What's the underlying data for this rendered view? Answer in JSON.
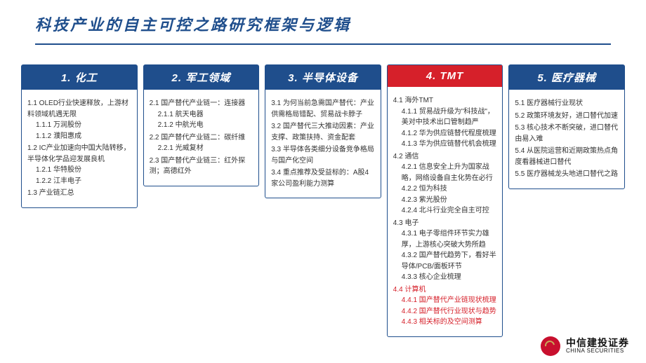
{
  "title": "科技产业的自主可控之路研究框架与逻辑",
  "header_bg_default": "#1f4e8c",
  "header_bg_highlight": "#d6202a",
  "columns": [
    {
      "header": "1. 化工",
      "highlight": false,
      "items": [
        {
          "text": "1.1 OLED行业快速释放，上游材料领域机遇无限",
          "lvl": 1,
          "red": false
        },
        {
          "text": "1.1.1 万润股份",
          "lvl": 2,
          "red": false
        },
        {
          "text": "1.1.2 濮阳惠成",
          "lvl": 2,
          "red": false
        },
        {
          "text": "1.2 IC产业加速向中国大陆转移，半导体化学品迎发展良机",
          "lvl": 1,
          "red": false
        },
        {
          "text": "1.2.1 华特股份",
          "lvl": 2,
          "red": false
        },
        {
          "text": "1.2.2 江丰电子",
          "lvl": 2,
          "red": false
        },
        {
          "text": "1.3 产业链汇总",
          "lvl": 1,
          "red": false
        }
      ]
    },
    {
      "header": "2. 军工领域",
      "highlight": false,
      "items": [
        {
          "text": "2.1 国产替代产业链一：连接器",
          "lvl": 1,
          "red": false
        },
        {
          "text": "2.1.1 航天电器",
          "lvl": 2,
          "red": false
        },
        {
          "text": "2.1.2 中航光电",
          "lvl": 2,
          "red": false
        },
        {
          "text": "2.2 国产替代产业链二：碳纤维",
          "lvl": 1,
          "red": false
        },
        {
          "text": "2.2.1 光威复材",
          "lvl": 2,
          "red": false
        },
        {
          "text": "2.3 国产替代产业链三：红外探测；高德红外",
          "lvl": 1,
          "red": false
        }
      ]
    },
    {
      "header": "3. 半导体设备",
      "highlight": false,
      "items": [
        {
          "text": "3.1 为何当前急需国产替代：产业供需格局错配、贸易战卡脖子",
          "lvl": 1,
          "red": false
        },
        {
          "text": "3.2 国产替代三大推动因素：产业支撑、政策扶持、资金配套",
          "lvl": 1,
          "red": false
        },
        {
          "text": "3.3 半导体各类细分设备竞争格局与国产化空间",
          "lvl": 1,
          "red": false
        },
        {
          "text": "3.4 重点推荐及受益标的：A股4家公司盈利能力测算",
          "lvl": 1,
          "red": false
        }
      ]
    },
    {
      "header": "4. TMT",
      "highlight": true,
      "items": [
        {
          "text": "4.1 海外TMT",
          "lvl": 1,
          "red": false
        },
        {
          "text": "4.1.1 贸易战升级为\"科技战\"，美对中技术出口管制趋严",
          "lvl": 2,
          "red": false
        },
        {
          "text": "4.1.2 华为供应链替代程度梳理",
          "lvl": 2,
          "red": false
        },
        {
          "text": "4.1.3 华为供应链替代机会梳理",
          "lvl": 2,
          "red": false
        },
        {
          "text": "4.2 通信",
          "lvl": 1,
          "red": false
        },
        {
          "text": "4.2.1 信息安全上升为国家战略，网络设备自主化势在必行",
          "lvl": 2,
          "red": false
        },
        {
          "text": "4.2.2 恒为科技",
          "lvl": 2,
          "red": false
        },
        {
          "text": "4.2.3 紫光股份",
          "lvl": 2,
          "red": false
        },
        {
          "text": "4.2.4 北斗行业完全自主可控",
          "lvl": 2,
          "red": false
        },
        {
          "text": "4.3 电子",
          "lvl": 1,
          "red": false
        },
        {
          "text": "4.3.1 电子零组件环节实力雄厚，上游核心突破大势所趋",
          "lvl": 2,
          "red": false
        },
        {
          "text": "4.3.2 国产替代趋势下，看好半导体/PCB/面板环节",
          "lvl": 2,
          "red": false
        },
        {
          "text": "4.3.3 核心企业梳理",
          "lvl": 2,
          "red": false
        },
        {
          "text": "4.4 计算机",
          "lvl": 1,
          "red": true
        },
        {
          "text": "4.4.1 国产替代产业链现状梳理",
          "lvl": 2,
          "red": true
        },
        {
          "text": "4.4.2 国产替代行业现状与趋势",
          "lvl": 2,
          "red": true
        },
        {
          "text": "4.4.3 相关标的及空间测算",
          "lvl": 2,
          "red": true
        }
      ]
    },
    {
      "header": "5. 医疗器械",
      "highlight": false,
      "items": [
        {
          "text": "5.1 医疗器械行业现状",
          "lvl": 1,
          "red": false
        },
        {
          "text": "5.2 政策环境友好，进口替代加速",
          "lvl": 1,
          "red": false
        },
        {
          "text": "5.3 核心技术不断突破，进口替代由易入难",
          "lvl": 1,
          "red": false
        },
        {
          "text": "5.4 从医院运营和近期政策热点角度看器械进口替代",
          "lvl": 1,
          "red": false
        },
        {
          "text": "5.5 医疗器械龙头地进口替代之路",
          "lvl": 1,
          "red": false
        }
      ]
    }
  ],
  "footer": {
    "company_cn": "中信建投证券",
    "company_en": "CHINA SECURITIES"
  }
}
